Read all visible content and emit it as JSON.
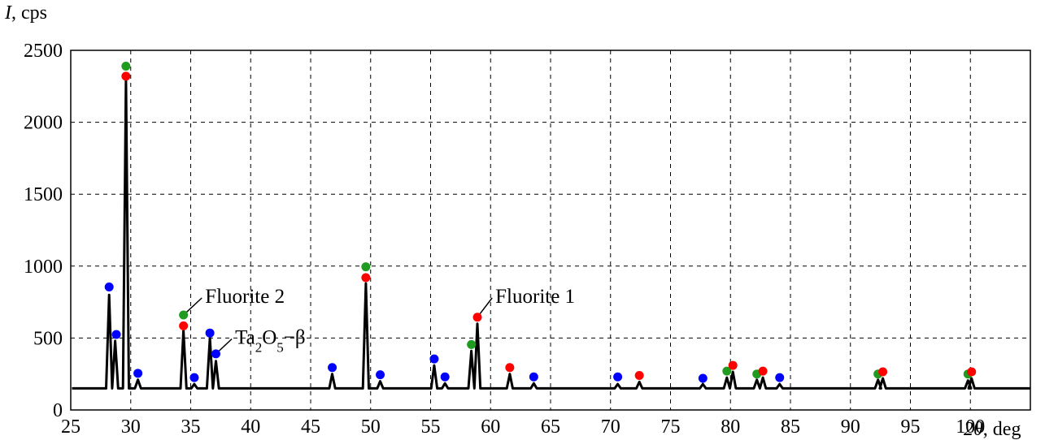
{
  "chart_data": {
    "type": "line",
    "ylabel_var": "I",
    "ylabel_unit": ", cps",
    "xlabel_var": "2θ",
    "xlabel_unit": ", deg",
    "xlim": [
      25,
      105
    ],
    "ylim": [
      0,
      2500
    ],
    "xticks": [
      25,
      30,
      35,
      40,
      45,
      50,
      55,
      60,
      65,
      70,
      75,
      80,
      85,
      90,
      95,
      100
    ],
    "yticks": [
      0,
      500,
      1000,
      1500,
      2000,
      2500
    ],
    "grid": true,
    "baseline": 150,
    "x_start": 25.1,
    "x_end": 105.0,
    "peaks": [
      {
        "x": 28.2,
        "y": 800
      },
      {
        "x": 28.7,
        "y": 480
      },
      {
        "x": 29.6,
        "y": 2300
      },
      {
        "x": 30.6,
        "y": 210
      },
      {
        "x": 34.4,
        "y": 550
      },
      {
        "x": 35.3,
        "y": 180
      },
      {
        "x": 36.6,
        "y": 500
      },
      {
        "x": 37.1,
        "y": 340
      },
      {
        "x": 46.8,
        "y": 250
      },
      {
        "x": 49.6,
        "y": 880
      },
      {
        "x": 50.8,
        "y": 200
      },
      {
        "x": 55.3,
        "y": 310
      },
      {
        "x": 56.2,
        "y": 185
      },
      {
        "x": 58.4,
        "y": 410
      },
      {
        "x": 58.9,
        "y": 600
      },
      {
        "x": 61.6,
        "y": 250
      },
      {
        "x": 63.6,
        "y": 185
      },
      {
        "x": 70.6,
        "y": 180
      },
      {
        "x": 72.4,
        "y": 195
      },
      {
        "x": 77.7,
        "y": 180
      },
      {
        "x": 79.7,
        "y": 225
      },
      {
        "x": 80.2,
        "y": 265
      },
      {
        "x": 82.2,
        "y": 210
      },
      {
        "x": 82.7,
        "y": 225
      },
      {
        "x": 84.1,
        "y": 180
      },
      {
        "x": 92.3,
        "y": 210
      },
      {
        "x": 92.7,
        "y": 220
      },
      {
        "x": 99.8,
        "y": 205
      },
      {
        "x": 100.1,
        "y": 220
      }
    ],
    "markers": [
      {
        "phase": "blue",
        "x": 28.2,
        "y": 855
      },
      {
        "phase": "blue",
        "x": 28.8,
        "y": 525
      },
      {
        "phase": "green",
        "x": 29.6,
        "y": 2390
      },
      {
        "phase": "red",
        "x": 29.6,
        "y": 2320
      },
      {
        "phase": "blue",
        "x": 30.6,
        "y": 255
      },
      {
        "phase": "green",
        "x": 34.4,
        "y": 660
      },
      {
        "phase": "red",
        "x": 34.4,
        "y": 585
      },
      {
        "phase": "blue",
        "x": 35.3,
        "y": 225
      },
      {
        "phase": "blue",
        "x": 36.6,
        "y": 535
      },
      {
        "phase": "blue",
        "x": 37.1,
        "y": 390
      },
      {
        "phase": "blue",
        "x": 46.8,
        "y": 295
      },
      {
        "phase": "green",
        "x": 49.6,
        "y": 995
      },
      {
        "phase": "red",
        "x": 49.6,
        "y": 920
      },
      {
        "phase": "blue",
        "x": 50.8,
        "y": 245
      },
      {
        "phase": "blue",
        "x": 55.3,
        "y": 355
      },
      {
        "phase": "blue",
        "x": 56.2,
        "y": 230
      },
      {
        "phase": "green",
        "x": 58.4,
        "y": 455
      },
      {
        "phase": "red",
        "x": 58.9,
        "y": 645
      },
      {
        "phase": "red",
        "x": 61.6,
        "y": 295
      },
      {
        "phase": "blue",
        "x": 63.6,
        "y": 230
      },
      {
        "phase": "blue",
        "x": 70.6,
        "y": 230
      },
      {
        "phase": "red",
        "x": 72.4,
        "y": 240
      },
      {
        "phase": "blue",
        "x": 77.7,
        "y": 220
      },
      {
        "phase": "green",
        "x": 79.7,
        "y": 270
      },
      {
        "phase": "red",
        "x": 80.2,
        "y": 310
      },
      {
        "phase": "green",
        "x": 82.2,
        "y": 250
      },
      {
        "phase": "red",
        "x": 82.7,
        "y": 270
      },
      {
        "phase": "blue",
        "x": 84.1,
        "y": 225
      },
      {
        "phase": "green",
        "x": 92.3,
        "y": 250
      },
      {
        "phase": "red",
        "x": 92.7,
        "y": 265
      },
      {
        "phase": "green",
        "x": 99.8,
        "y": 250
      },
      {
        "phase": "red",
        "x": 100.1,
        "y": 265
      }
    ],
    "annotations": [
      {
        "name": "fluorite-2",
        "text": "Fluorite 2",
        "ax": 34.4,
        "ay": 660,
        "tx": 36.2,
        "ty": 745
      },
      {
        "name": "fluorite-1",
        "text": "Fluorite 1",
        "ax": 58.9,
        "ay": 645,
        "tx": 60.4,
        "ty": 745
      },
      {
        "name": "ta2o5-beta",
        "text": "Ta2O5−β",
        "ax": 37.1,
        "ay": 390,
        "tx": 38.7,
        "ty": 460
      }
    ],
    "colors": {
      "red": "#ff0000",
      "green": "#1f9b1f",
      "blue": "#0000ff",
      "line": "#000000"
    }
  }
}
